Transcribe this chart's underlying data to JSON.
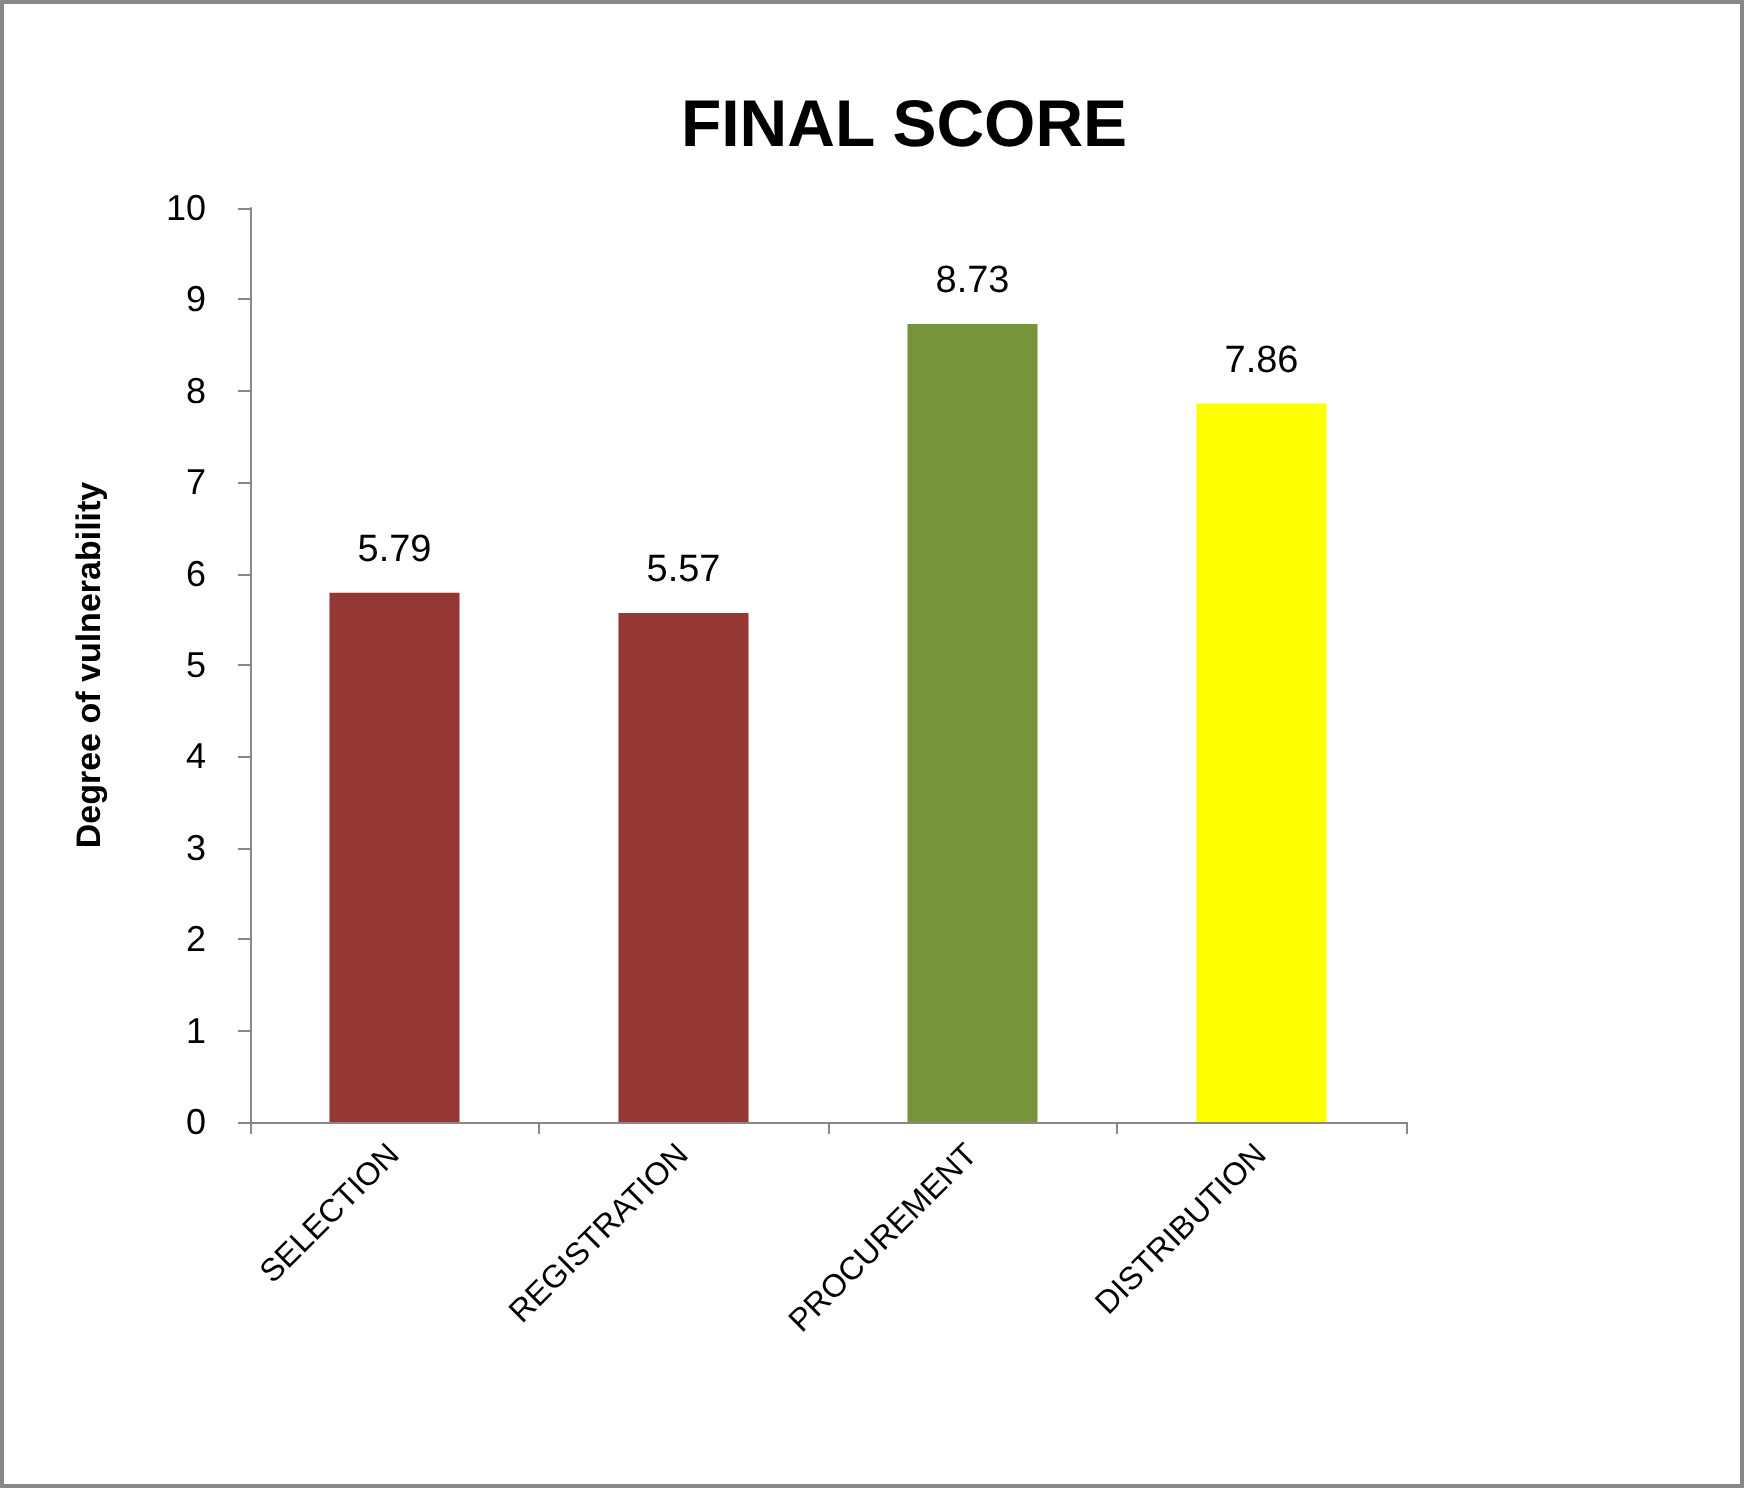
{
  "chart_data": {
    "type": "bar",
    "title": "FINAL SCORE",
    "ylabel": "Degree of vulnerability",
    "categories": [
      "SELECTION",
      "REGISTRATION",
      "PROCUREMENT",
      "DISTRIBUTION"
    ],
    "values": [
      5.79,
      5.57,
      8.73,
      7.86
    ],
    "colors": [
      "#953735",
      "#953735",
      "#77933c",
      "#ffff00"
    ],
    "ylim": [
      0,
      10
    ],
    "yticks": [
      0,
      1,
      2,
      3,
      4,
      5,
      6,
      7,
      8,
      9,
      10
    ],
    "data_labels": true
  }
}
